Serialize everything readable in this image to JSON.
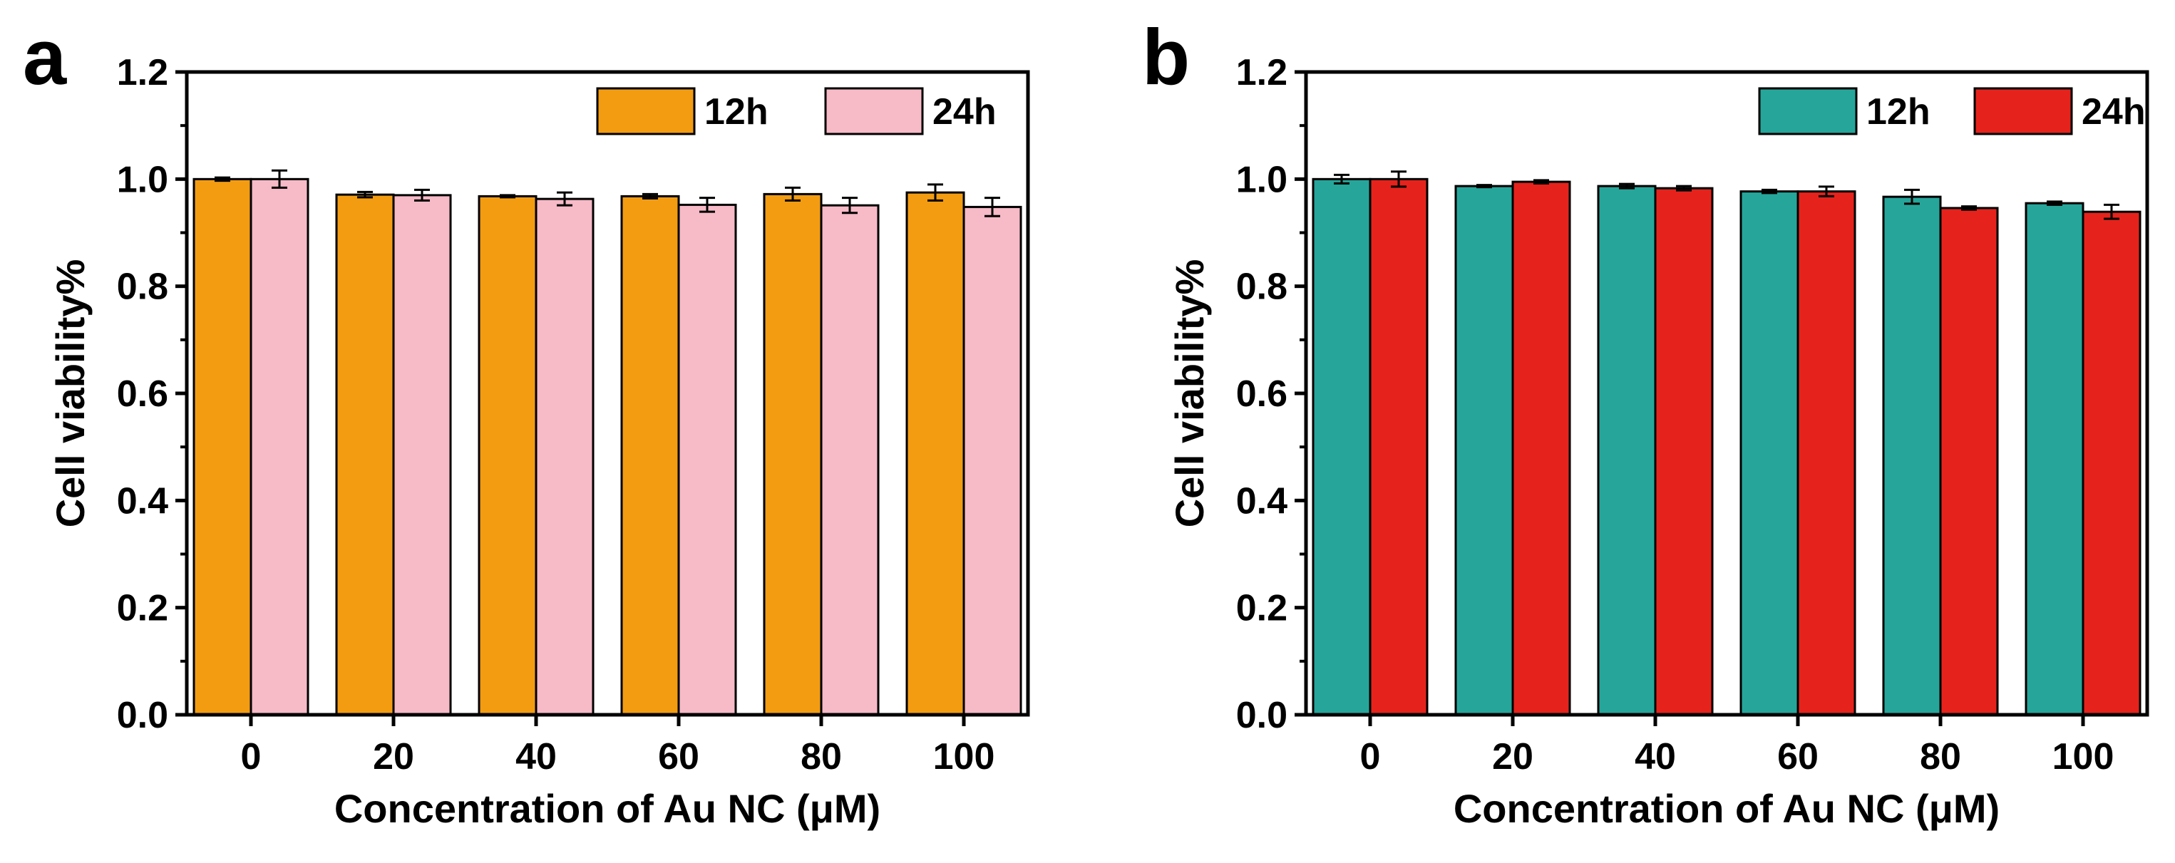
{
  "chart_data": [
    {
      "panel_label": "a",
      "type": "bar",
      "xlabel": "Concentration of Au NC (μM)",
      "ylabel": "Cell viability%",
      "ylim": [
        0,
        1.2
      ],
      "yticks": [
        "0.0",
        "0.2",
        "0.4",
        "0.6",
        "0.8",
        "1.0",
        "1.2"
      ],
      "categories": [
        "0",
        "20",
        "40",
        "60",
        "80",
        "100"
      ],
      "legend_position": "top-right",
      "series": [
        {
          "name": "12h",
          "color": "#F39C12",
          "values": [
            1.0,
            0.971,
            0.968,
            0.968,
            0.972,
            0.975
          ],
          "errors": [
            0.003,
            0.005,
            0.002,
            0.004,
            0.012,
            0.015
          ]
        },
        {
          "name": "24h",
          "color": "#F7BAC7",
          "values": [
            1.0,
            0.97,
            0.963,
            0.952,
            0.951,
            0.948
          ],
          "errors": [
            0.016,
            0.01,
            0.012,
            0.013,
            0.014,
            0.017
          ]
        }
      ]
    },
    {
      "panel_label": "b",
      "type": "bar",
      "xlabel": "Concentration of Au NC (μM)",
      "ylabel": "Cell viability%",
      "ylim": [
        0,
        1.2
      ],
      "yticks": [
        "0.0",
        "0.2",
        "0.4",
        "0.6",
        "0.8",
        "1.0",
        "1.2"
      ],
      "categories": [
        "0",
        "20",
        "40",
        "60",
        "80",
        "100"
      ],
      "legend_position": "top-right",
      "series": [
        {
          "name": "12h",
          "color": "#26A69A",
          "values": [
            1.0,
            0.987,
            0.987,
            0.977,
            0.967,
            0.955
          ],
          "errors": [
            0.008,
            0.002,
            0.004,
            0.003,
            0.013,
            0.003
          ]
        },
        {
          "name": "24h",
          "color": "#E5231C",
          "values": [
            1.0,
            0.995,
            0.983,
            0.977,
            0.946,
            0.939
          ],
          "errors": [
            0.014,
            0.003,
            0.004,
            0.009,
            0.003,
            0.013
          ]
        }
      ]
    }
  ]
}
